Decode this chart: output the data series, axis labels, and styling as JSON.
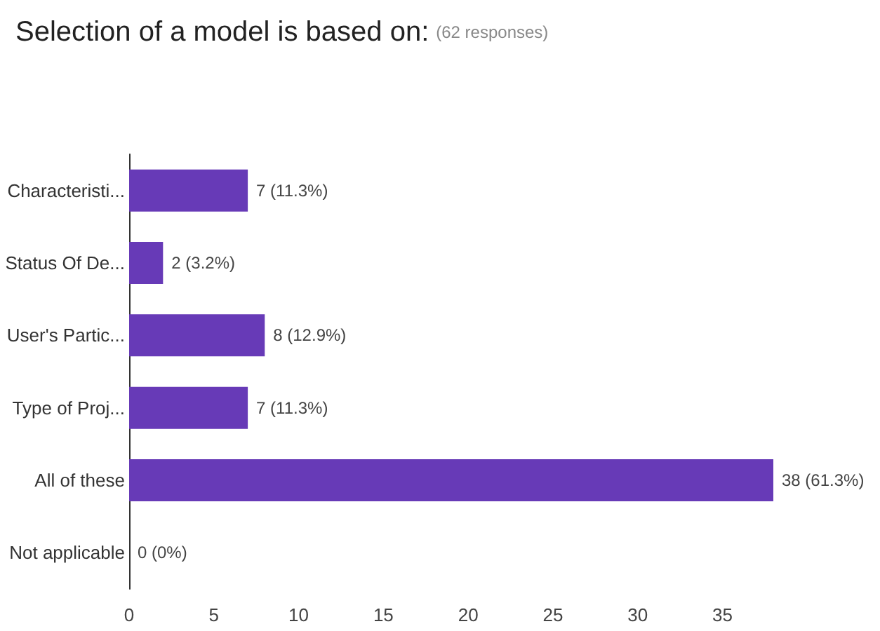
{
  "chart_data": {
    "type": "bar",
    "orientation": "horizontal",
    "title": "Selection of a model is based on:",
    "subtitle": "(62 responses)",
    "categories": [
      "Characteristi...",
      "Status Of De...",
      "User's Partic...",
      "Type of Proj...",
      "All of these",
      "Not applicable"
    ],
    "values": [
      7,
      2,
      8,
      7,
      38,
      0
    ],
    "value_labels": [
      "7 (11.3%)",
      "2 (3.2%)",
      "8 (12.9%)",
      "7 (11.3%)",
      "38 (61.3%)",
      "0 (0%)"
    ],
    "color": "#673ab7",
    "xlim": [
      0,
      38
    ],
    "xticks": [
      0,
      5,
      10,
      15,
      20,
      25,
      30,
      35
    ],
    "grid": false
  }
}
